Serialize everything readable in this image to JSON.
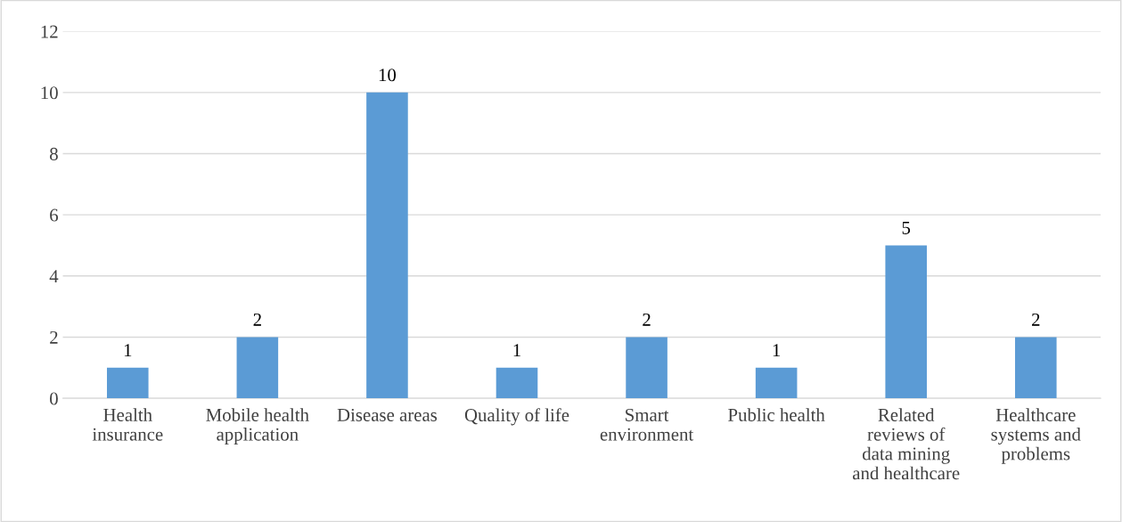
{
  "chart_data": {
    "type": "bar",
    "categories": [
      "Health\ninsurance",
      "Mobile health\napplication",
      "Disease areas",
      "Quality of life",
      "Smart\nenvironment",
      "Public health",
      "Related\nreviews of\ndata mining\nand healthcare",
      "Healthcare\nsystems and\nproblems"
    ],
    "values": [
      1,
      2,
      10,
      1,
      2,
      1,
      5,
      2
    ],
    "color": "#5b9bd5",
    "ylim": [
      0,
      12
    ],
    "yticks": [
      0,
      2,
      4,
      6,
      8,
      10,
      12
    ],
    "grid": "y",
    "data_labels": true
  }
}
